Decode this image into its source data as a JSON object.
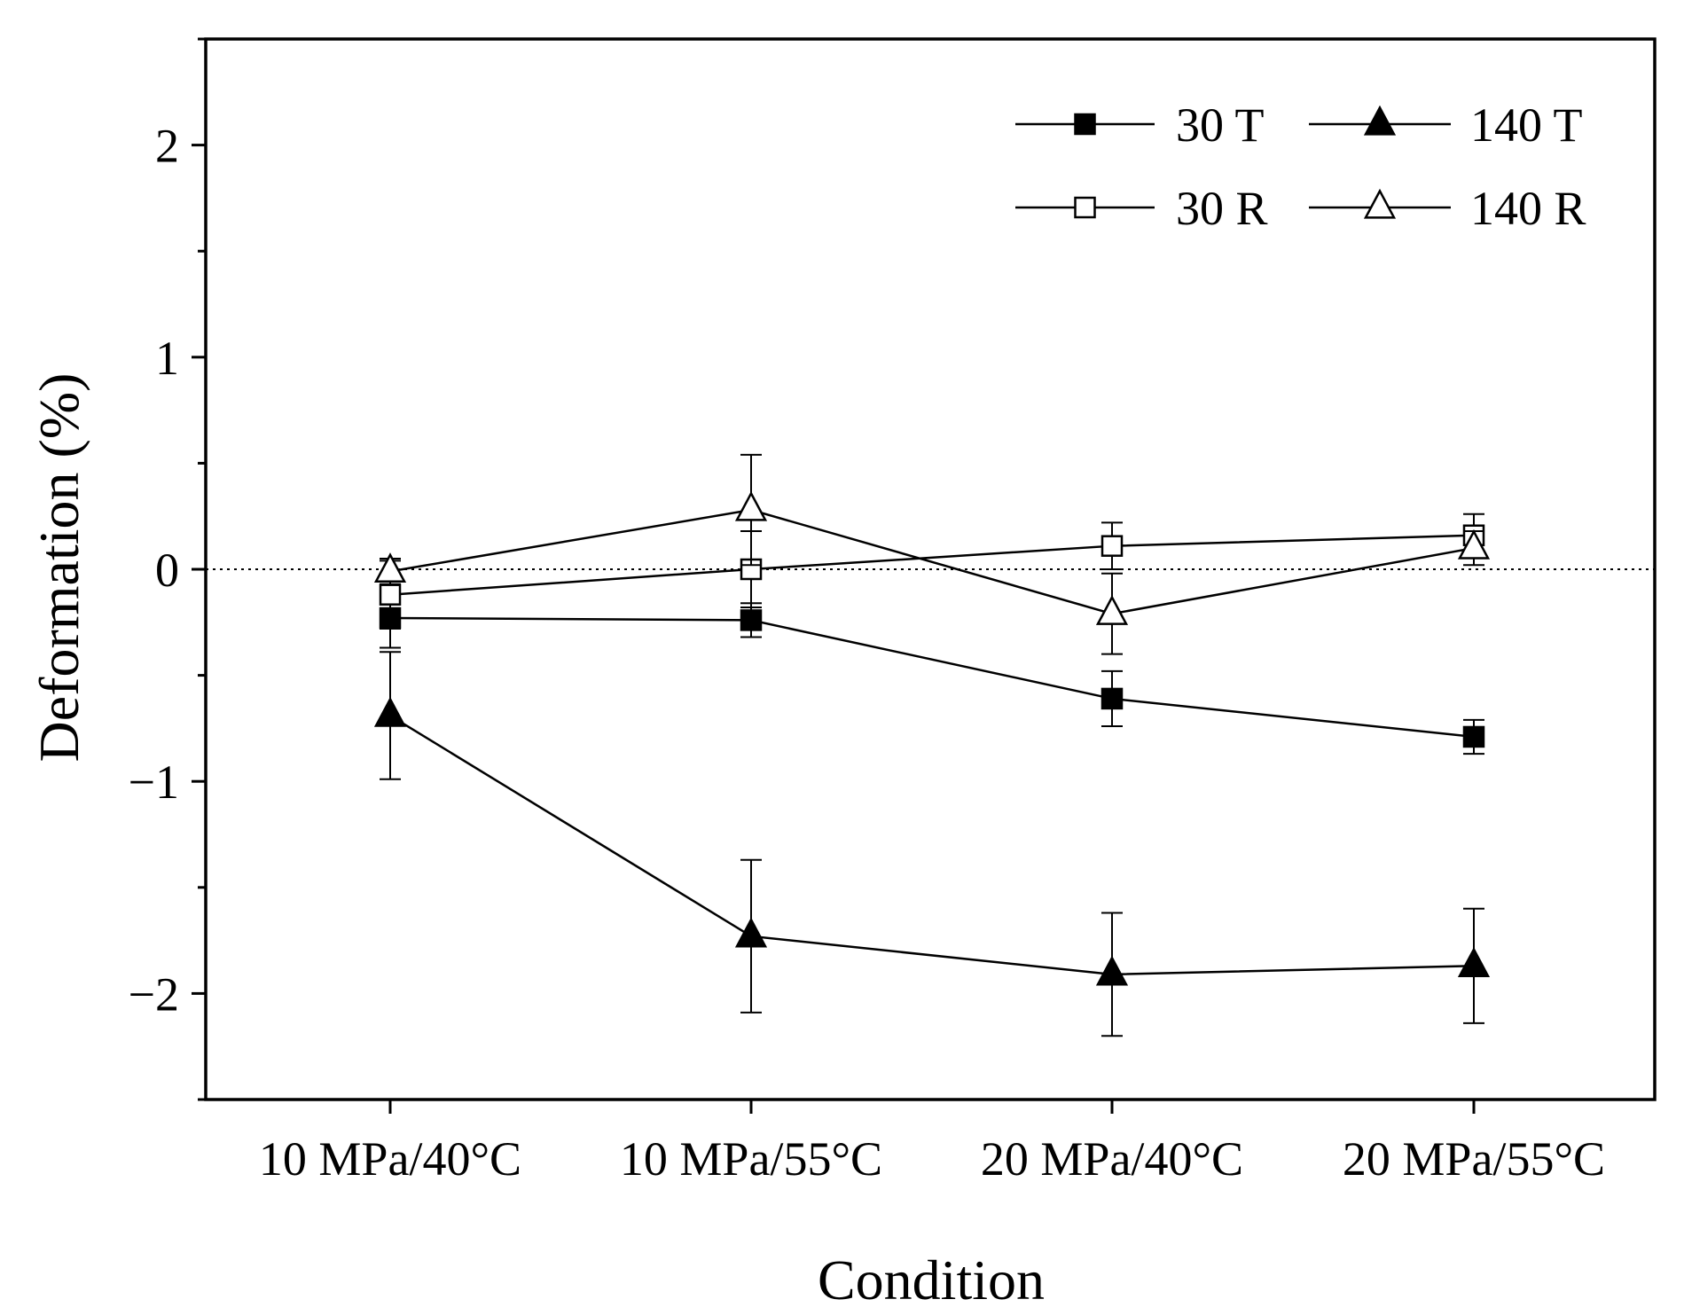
{
  "chart_data": {
    "type": "line",
    "title": "",
    "xlabel": "Condition",
    "ylabel": "Deformation (%)",
    "categories": [
      "10 MPa/40°C",
      "10 MPa/55°C",
      "20 MPa/40°C",
      "20 MPa/55°C"
    ],
    "ylim": [
      -2.5,
      2.5
    ],
    "yticks": [
      -2,
      -1,
      0,
      1,
      2
    ],
    "ytick_labels": [
      "−2",
      "−1",
      "0",
      "1",
      "2"
    ],
    "reference_line": {
      "y": 0,
      "style": "dotted"
    },
    "legend_position": "top-right",
    "series": [
      {
        "name": "30 T",
        "marker": "square",
        "filled": true,
        "values": [
          -0.23,
          -0.24,
          -0.61,
          -0.79
        ],
        "errors": [
          0.14,
          0.08,
          0.13,
          0.08
        ]
      },
      {
        "name": "140 T",
        "marker": "triangle",
        "filled": true,
        "values": [
          -0.69,
          -1.73,
          -1.91,
          -1.87
        ],
        "errors": [
          0.3,
          0.36,
          0.29,
          0.27
        ]
      },
      {
        "name": "30 R",
        "marker": "square",
        "filled": false,
        "values": [
          -0.12,
          0.0,
          0.11,
          0.16
        ],
        "errors": [
          0.16,
          0.18,
          0.11,
          0.1
        ]
      },
      {
        "name": "140 R",
        "marker": "triangle",
        "filled": false,
        "values": [
          -0.01,
          0.28,
          -0.21,
          0.1
        ],
        "errors": [
          0.06,
          0.26,
          0.19,
          0.08
        ]
      }
    ],
    "legend_order": [
      "30 T",
      "140 T",
      "30 R",
      "140 R"
    ]
  }
}
